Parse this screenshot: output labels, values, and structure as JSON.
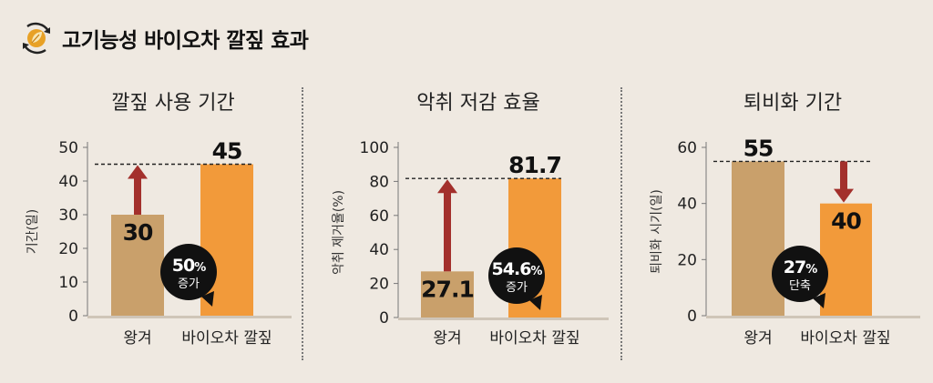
{
  "header": {
    "title": "고기능성 바이오차 깔짚 효과",
    "icon": "leaf-recycle-icon"
  },
  "colors": {
    "wanggyeo": "#c9a06b",
    "biochar": "#f29a3a",
    "arrow": "#a3302c",
    "badge": "#111111"
  },
  "chart_data": [
    {
      "type": "bar",
      "title": "깔짚 사용 기간",
      "ylabel": "기간(일)",
      "ylim": [
        0,
        50
      ],
      "yticks": [
        0,
        10,
        20,
        30,
        40,
        50
      ],
      "categories": [
        "왕겨",
        "바이오차 깔짚"
      ],
      "values": [
        30,
        45
      ],
      "value_labels": [
        "30",
        "45"
      ],
      "reference_line": 45,
      "arrow": {
        "from": 30,
        "to": 45,
        "direction": "up"
      },
      "badge": {
        "value": "50",
        "unit": "%",
        "text": "증가"
      }
    },
    {
      "type": "bar",
      "title": "악취 저감 효율",
      "ylabel": "악취 제거율(%)",
      "ylim": [
        0,
        100
      ],
      "yticks": [
        0,
        20,
        40,
        60,
        80,
        100
      ],
      "categories": [
        "왕겨",
        "바이오차 깔짚"
      ],
      "values": [
        27.1,
        81.7
      ],
      "value_labels": [
        "27.1",
        "81.7"
      ],
      "reference_line": 81.7,
      "arrow": {
        "from": 27.1,
        "to": 81.7,
        "direction": "up"
      },
      "badge": {
        "value": "54.6",
        "unit": "%",
        "text": "증가"
      }
    },
    {
      "type": "bar",
      "title": "퇴비화 기간",
      "ylabel": "퇴비화 시기(일)",
      "ylim": [
        0,
        60
      ],
      "yticks": [
        0,
        20,
        40,
        60
      ],
      "categories": [
        "왕겨",
        "바이오차 깔짚"
      ],
      "values": [
        55,
        40
      ],
      "value_labels": [
        "55",
        "40"
      ],
      "reference_line": 55,
      "arrow": {
        "from": 55,
        "to": 40,
        "direction": "down"
      },
      "badge": {
        "value": "27",
        "unit": "%",
        "text": "단축"
      }
    }
  ]
}
